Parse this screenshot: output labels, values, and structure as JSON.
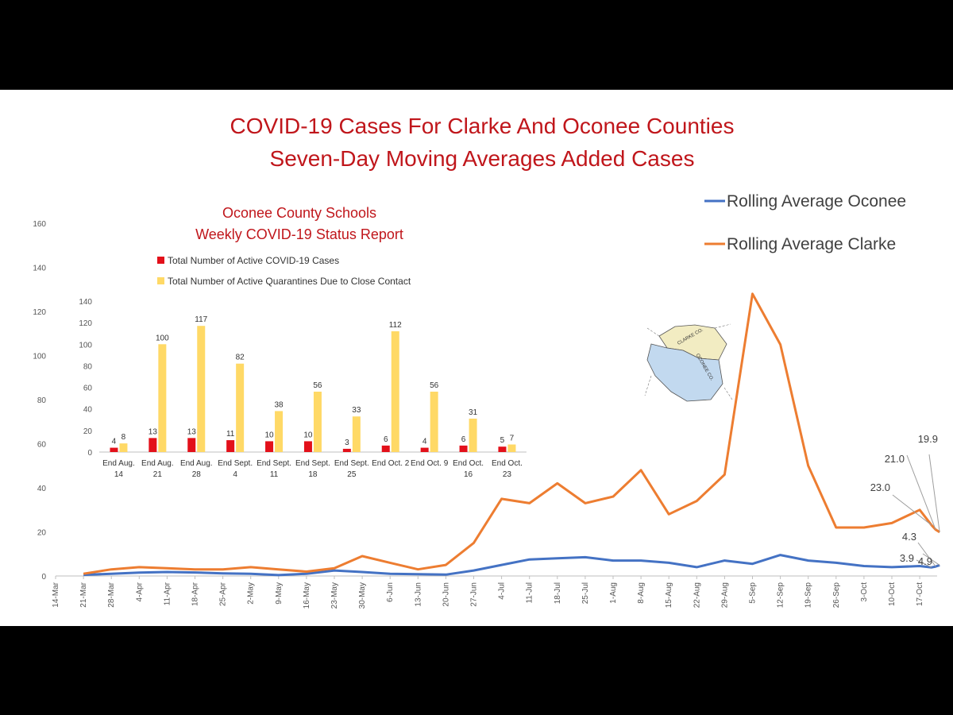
{
  "title": {
    "line1": "COVID-19 Cases For Clarke And Oconee Counties",
    "line2": "Seven-Day Moving Averages Added Cases",
    "color": "#c0161b"
  },
  "chart_data": [
    {
      "type": "line",
      "title": "COVID-19 Cases For Clarke And Oconee Counties Seven-Day Moving Averages Added Cases",
      "xlabel": "",
      "ylabel": "",
      "ylim": [
        0,
        160
      ],
      "yticks": [
        0,
        20,
        40,
        60,
        80,
        100,
        120,
        140,
        160
      ],
      "x_tick_labels": [
        "14-Mar",
        "21-Mar",
        "28-Mar",
        "4-Apr",
        "11-Apr",
        "18-Apr",
        "25-Apr",
        "2-May",
        "9-May",
        "16-May",
        "23-May",
        "30-May",
        "6-Jun",
        "13-Jun",
        "20-Jun",
        "27-Jun",
        "4-Jul",
        "11-Jul",
        "18-Jul",
        "25-Jul",
        "1-Aug",
        "8-Aug",
        "15-Aug",
        "22-Aug",
        "29-Aug",
        "5-Sep",
        "12-Sep",
        "19-Sep",
        "26-Sep",
        "3-Oct",
        "10-Oct",
        "17-Oct"
      ],
      "grid": false,
      "legend_position": "top-right",
      "series": [
        {
          "name": "Rolling Average Oconee",
          "color": "#4472c4",
          "x": [
            "21-Mar",
            "28-Mar",
            "4-Apr",
            "11-Apr",
            "18-Apr",
            "25-Apr",
            "2-May",
            "9-May",
            "16-May",
            "23-May",
            "30-May",
            "6-Jun",
            "13-Jun",
            "20-Jun",
            "27-Jun",
            "4-Jul",
            "11-Jul",
            "18-Jul",
            "25-Jul",
            "1-Aug",
            "8-Aug",
            "15-Aug",
            "22-Aug",
            "29-Aug",
            "5-Sep",
            "12-Sep",
            "19-Sep",
            "26-Sep",
            "3-Oct",
            "10-Oct",
            "17-Oct",
            "20-Oct",
            "21-Oct",
            "22-Oct"
          ],
          "values": [
            0.5,
            1.0,
            1.5,
            1.8,
            1.6,
            1.2,
            1.0,
            0.4,
            1.0,
            2.5,
            1.8,
            1.0,
            0.8,
            0.6,
            2.5,
            5.0,
            7.5,
            8.0,
            8.5,
            7.0,
            7.0,
            6.0,
            4.0,
            7.0,
            5.5,
            9.5,
            7.0,
            6.0,
            4.5,
            4.0,
            4.5,
            3.9,
            4.3,
            4.9
          ]
        },
        {
          "name": "Rolling Average Clarke",
          "color": "#ed7d31",
          "x": [
            "21-Mar",
            "28-Mar",
            "4-Apr",
            "11-Apr",
            "18-Apr",
            "25-Apr",
            "2-May",
            "9-May",
            "16-May",
            "23-May",
            "30-May",
            "6-Jun",
            "13-Jun",
            "20-Jun",
            "27-Jun",
            "4-Jul",
            "11-Jul",
            "18-Jul",
            "25-Jul",
            "1-Aug",
            "8-Aug",
            "15-Aug",
            "22-Aug",
            "29-Aug",
            "5-Sep",
            "12-Sep",
            "19-Sep",
            "26-Sep",
            "3-Oct",
            "10-Oct",
            "17-Oct",
            "20-Oct",
            "21-Oct",
            "22-Oct"
          ],
          "values": [
            1.0,
            3.0,
            4.0,
            3.5,
            3.0,
            3.0,
            4.0,
            3.0,
            2.0,
            3.5,
            9.0,
            6.0,
            3.0,
            5.0,
            15.0,
            35.0,
            33.0,
            42.0,
            33.0,
            36.0,
            48.0,
            28.0,
            34.0,
            46.0,
            128.0,
            105.0,
            50.0,
            22.0,
            22.0,
            24.0,
            30.0,
            23.0,
            21.0,
            19.9
          ]
        }
      ],
      "annotations": [
        "19.9",
        "21.0",
        "23.0",
        "4.3",
        "3.9",
        "4.9"
      ]
    },
    {
      "type": "bar",
      "title": "Oconee County Schools Weekly COVID-19 Status Report",
      "title_line1": "Oconee County Schools",
      "title_line2": "Weekly COVID-19 Status Report",
      "categories": [
        [
          "End Aug.",
          "14"
        ],
        [
          "End Aug.",
          "21"
        ],
        [
          "End Aug.",
          "28"
        ],
        [
          "End Sept.",
          "4"
        ],
        [
          "End Sept.",
          "11"
        ],
        [
          "End Sept.",
          "18"
        ],
        [
          "End Sept.",
          "25"
        ],
        [
          "End Oct. 2",
          ""
        ],
        [
          "End Oct. 9",
          ""
        ],
        [
          "End Oct.",
          "16"
        ],
        [
          "End Oct.",
          "23"
        ]
      ],
      "ylim": [
        0,
        140
      ],
      "yticks": [
        0,
        20,
        40,
        60,
        80,
        100,
        120,
        140
      ],
      "legend_position": "top",
      "series": [
        {
          "name": "Total Number of Active COVID-19 Cases",
          "color": "#e3101a",
          "values": [
            4,
            13,
            13,
            11,
            10,
            10,
            3,
            6,
            4,
            6,
            5
          ]
        },
        {
          "name": "Total Number of Active Quarantines Due to Close Contact",
          "color": "#ffd966",
          "values": [
            8,
            100,
            117,
            82,
            38,
            56,
            33,
            112,
            56,
            31,
            7
          ]
        }
      ]
    }
  ],
  "map": {
    "icon": "county-map-icon",
    "labels": [
      "CLARKE CO.",
      "OCONEE CO."
    ]
  }
}
